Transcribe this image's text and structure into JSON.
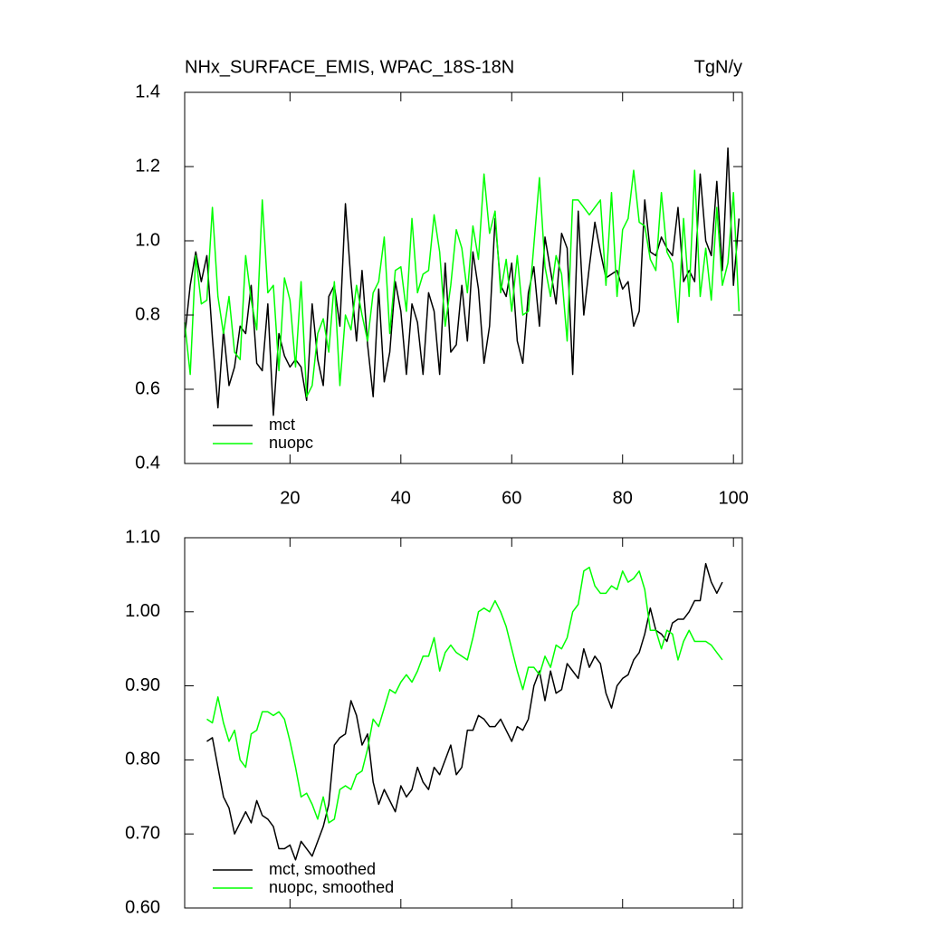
{
  "chart_data": [
    {
      "type": "line",
      "title": "NHx_SURFACE_EMIS, WPAC_18S-18N",
      "units": "TgN/y",
      "x": [
        1,
        2,
        3,
        4,
        5,
        6,
        7,
        8,
        9,
        10,
        11,
        12,
        13,
        14,
        15,
        16,
        17,
        18,
        19,
        20,
        21,
        22,
        23,
        24,
        25,
        26,
        27,
        28,
        29,
        30,
        31,
        32,
        33,
        34,
        35,
        36,
        37,
        38,
        39,
        40,
        41,
        42,
        43,
        44,
        45,
        46,
        47,
        48,
        49,
        50,
        51,
        52,
        53,
        54,
        55,
        56,
        57,
        58,
        59,
        60,
        61,
        62,
        63,
        64,
        65,
        66,
        67,
        68,
        69,
        70,
        71,
        72,
        73,
        74,
        75,
        76,
        77,
        78,
        79,
        80,
        81,
        82,
        83,
        84,
        85,
        86,
        87,
        88,
        89,
        90,
        91,
        92,
        93,
        94,
        95,
        96,
        97,
        98,
        99,
        100,
        101
      ],
      "series": [
        {
          "name": "mct",
          "color": "#000000",
          "values": [
            0.74,
            0.88,
            0.97,
            0.89,
            0.96,
            0.74,
            0.55,
            0.76,
            0.61,
            0.66,
            0.77,
            0.75,
            0.88,
            0.67,
            0.65,
            0.83,
            0.53,
            0.75,
            0.69,
            0.66,
            0.68,
            0.66,
            0.57,
            0.83,
            0.68,
            0.61,
            0.85,
            0.88,
            0.77,
            1.1,
            0.89,
            0.73,
            0.92,
            0.72,
            0.58,
            0.87,
            0.62,
            0.7,
            0.89,
            0.81,
            0.64,
            0.83,
            0.78,
            0.64,
            0.86,
            0.81,
            0.64,
            0.94,
            0.7,
            0.72,
            0.88,
            0.73,
            0.97,
            0.87,
            0.67,
            0.77,
            1.06,
            0.88,
            0.85,
            0.94,
            0.73,
            0.67,
            0.86,
            0.93,
            0.77,
            1.01,
            0.92,
            0.83,
            1.02,
            0.98,
            0.64,
            1.08,
            0.8,
            0.93,
            1.05,
            0.97,
            0.9,
            0.91,
            0.92,
            0.87,
            0.89,
            0.77,
            0.81,
            1.11,
            0.97,
            0.96,
            1.01,
            0.98,
            0.96,
            1.09,
            0.89,
            0.92,
            0.89,
            1.18,
            1.0,
            0.96,
            1.16,
            0.92,
            1.25,
            0.88,
            1.06
          ]
        },
        {
          "name": "nuopc",
          "color": "#00ff00",
          "values": [
            0.78,
            0.64,
            0.96,
            0.83,
            0.84,
            1.09,
            0.85,
            0.75,
            0.85,
            0.7,
            0.68,
            0.96,
            0.84,
            0.76,
            1.11,
            0.86,
            0.88,
            0.65,
            0.9,
            0.84,
            0.66,
            0.89,
            0.58,
            0.61,
            0.75,
            0.79,
            0.7,
            0.89,
            0.61,
            0.8,
            0.76,
            0.88,
            0.8,
            0.73,
            0.86,
            0.89,
            1.01,
            0.75,
            0.92,
            0.93,
            0.81,
            1.06,
            0.86,
            0.91,
            0.92,
            1.07,
            0.97,
            0.77,
            0.88,
            1.03,
            0.98,
            0.86,
            1.04,
            0.95,
            1.18,
            1.02,
            1.08,
            0.86,
            0.95,
            0.81,
            0.96,
            0.8,
            0.81,
            0.99,
            1.17,
            0.93,
            0.85,
            0.96,
            0.91,
            0.73,
            1.11,
            1.11,
            1.09,
            1.07,
            1.09,
            1.11,
            0.88,
            1.13,
            0.85,
            1.03,
            1.06,
            1.19,
            1.05,
            1.04,
            0.95,
            0.92,
            1.13,
            0.97,
            0.94,
            0.78,
            1.06,
            0.85,
            1.19,
            0.85,
            0.98,
            0.84,
            1.09,
            0.88,
            0.94,
            1.13,
            0.81
          ]
        }
      ],
      "xlim": [
        1,
        101.6
      ],
      "xticks": [
        20,
        40,
        60,
        80,
        100
      ],
      "ylim": [
        0.4,
        1.4
      ],
      "yticks": [
        0.4,
        0.6,
        0.8,
        {
          "value": 1,
          "label": "1.0"
        },
        1.2,
        1.4
      ],
      "show_xtick_labels": true,
      "legend": "lower left"
    },
    {
      "type": "line",
      "x": [
        5,
        6,
        7,
        8,
        9,
        10,
        11,
        12,
        13,
        14,
        15,
        16,
        17,
        18,
        19,
        20,
        21,
        22,
        23,
        24,
        25,
        26,
        27,
        28,
        29,
        30,
        31,
        32,
        33,
        34,
        35,
        36,
        37,
        38,
        39,
        40,
        41,
        42,
        43,
        44,
        45,
        46,
        47,
        48,
        49,
        50,
        51,
        52,
        53,
        54,
        55,
        56,
        57,
        58,
        59,
        60,
        61,
        62,
        63,
        64,
        65,
        66,
        67,
        68,
        69,
        70,
        71,
        72,
        73,
        74,
        75,
        76,
        77,
        78,
        79,
        80,
        81,
        82,
        83,
        84,
        85,
        86,
        87,
        88,
        89,
        90,
        91,
        92,
        93,
        94,
        95,
        96,
        97,
        98
      ],
      "series": [
        {
          "name": "mct, smoothed",
          "color": "#000000",
          "values": [
            0.825,
            0.83,
            0.79,
            0.75,
            0.735,
            0.7,
            0.715,
            0.73,
            0.715,
            0.745,
            0.725,
            0.72,
            0.71,
            0.68,
            0.68,
            0.685,
            0.665,
            0.69,
            0.68,
            0.67,
            0.69,
            0.71,
            0.74,
            0.82,
            0.83,
            0.835,
            0.88,
            0.86,
            0.82,
            0.835,
            0.77,
            0.74,
            0.76,
            0.745,
            0.73,
            0.765,
            0.75,
            0.76,
            0.79,
            0.77,
            0.76,
            0.79,
            0.78,
            0.8,
            0.82,
            0.78,
            0.79,
            0.84,
            0.84,
            0.86,
            0.855,
            0.845,
            0.845,
            0.855,
            0.84,
            0.825,
            0.845,
            0.84,
            0.855,
            0.9,
            0.92,
            0.88,
            0.92,
            0.89,
            0.895,
            0.93,
            0.92,
            0.91,
            0.95,
            0.925,
            0.94,
            0.93,
            0.89,
            0.87,
            0.9,
            0.91,
            0.915,
            0.935,
            0.945,
            0.97,
            1.005,
            0.975,
            0.97,
            0.96,
            0.985,
            0.99,
            0.99,
            1.0,
            1.015,
            1.015,
            1.065,
            1.04,
            1.025,
            1.04
          ]
        },
        {
          "name": "nuopc, smoothed",
          "color": "#00ff00",
          "values": [
            0.855,
            0.85,
            0.885,
            0.85,
            0.825,
            0.84,
            0.8,
            0.79,
            0.835,
            0.84,
            0.865,
            0.865,
            0.86,
            0.865,
            0.855,
            0.825,
            0.79,
            0.75,
            0.755,
            0.74,
            0.72,
            0.75,
            0.715,
            0.72,
            0.76,
            0.765,
            0.76,
            0.78,
            0.785,
            0.815,
            0.855,
            0.845,
            0.87,
            0.895,
            0.89,
            0.905,
            0.915,
            0.905,
            0.92,
            0.94,
            0.94,
            0.965,
            0.92,
            0.945,
            0.955,
            0.945,
            0.94,
            0.935,
            0.965,
            1.0,
            1.005,
            1.0,
            1.015,
            1.0,
            0.98,
            0.95,
            0.92,
            0.895,
            0.925,
            0.925,
            0.915,
            0.94,
            0.925,
            0.955,
            0.95,
            0.965,
            1.0,
            1.01,
            1.055,
            1.06,
            1.035,
            1.025,
            1.025,
            1.035,
            1.03,
            1.055,
            1.04,
            1.045,
            1.055,
            1.03,
            0.975,
            0.975,
            0.95,
            0.975,
            0.97,
            0.935,
            0.96,
            0.975,
            0.96,
            0.96,
            0.96,
            0.955,
            0.945,
            0.935
          ]
        }
      ],
      "xlim": [
        1,
        101.6
      ],
      "xticks": [
        20,
        40,
        60,
        80,
        100
      ],
      "ylim": [
        0.6,
        1.1
      ],
      "yticks": [
        {
          "value": 0.6,
          "label": "0.60"
        },
        {
          "value": 0.7,
          "label": "0.70"
        },
        {
          "value": 0.8,
          "label": "0.80"
        },
        {
          "value": 0.9,
          "label": "0.90"
        },
        {
          "value": 1,
          "label": "1.00"
        },
        {
          "value": 1.1,
          "label": "1.10"
        }
      ],
      "show_xtick_labels": false,
      "legend": "lower left"
    }
  ]
}
